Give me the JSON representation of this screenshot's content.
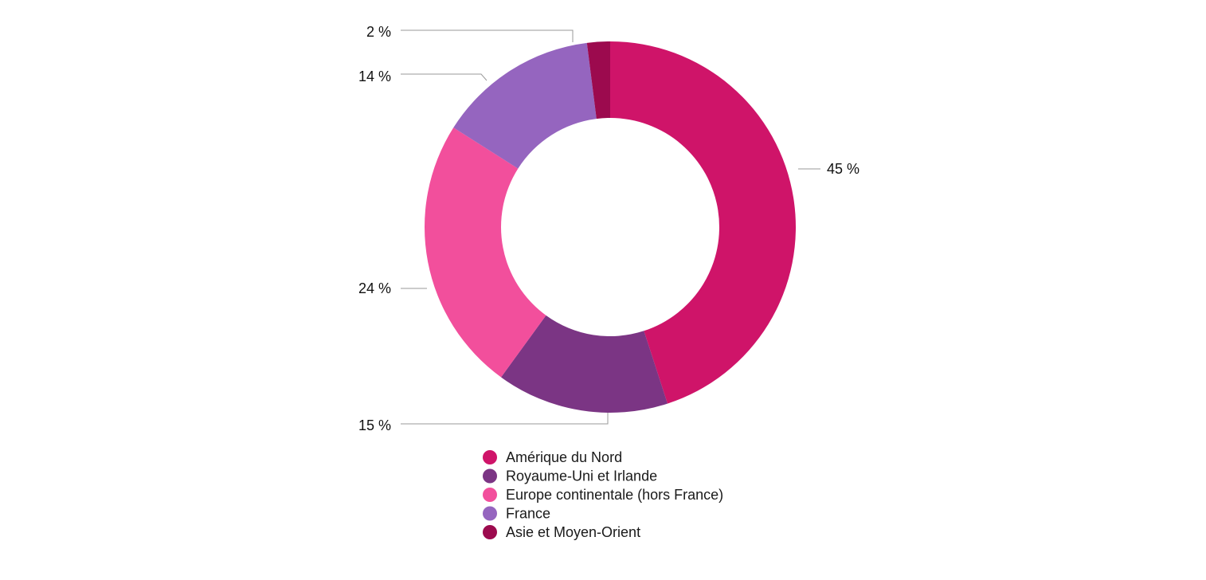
{
  "chart_data": {
    "type": "pie",
    "donut": true,
    "categories": [
      "Amérique du Nord",
      "Royaume-Uni et Irlande",
      "Europe continentale (hors France)",
      "France",
      "Asie et Moyen-Orient"
    ],
    "values": [
      45,
      15,
      24,
      14,
      2
    ],
    "labels": [
      "45 %",
      "15 %",
      "24 %",
      "14 %",
      "2 %"
    ],
    "colors": [
      "#cf1469",
      "#7b3584",
      "#f24f9c",
      "#9565bf",
      "#9c0a4e"
    ],
    "legend_position": "bottom"
  }
}
